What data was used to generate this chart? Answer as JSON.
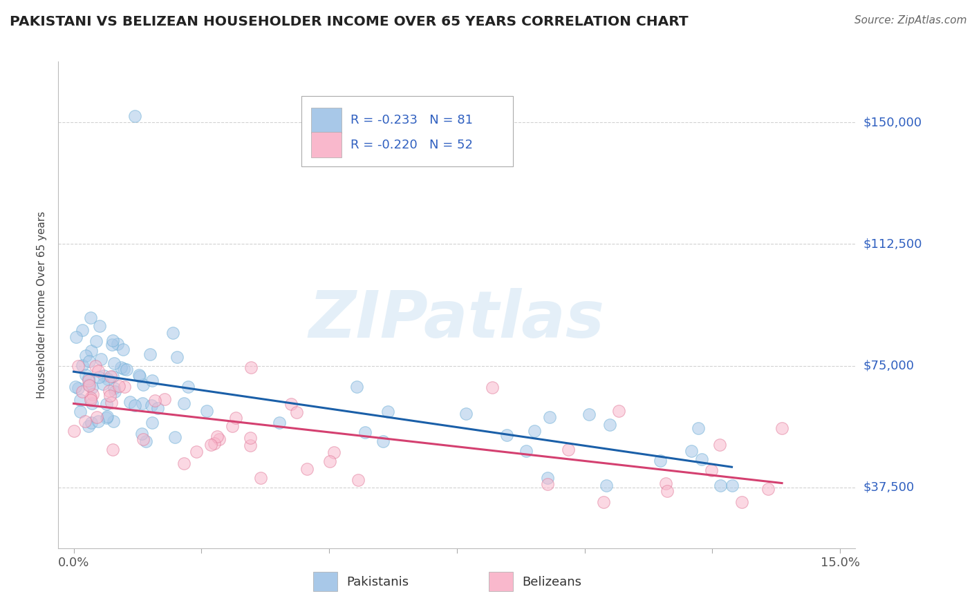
{
  "title": "PAKISTANI VS BELIZEAN HOUSEHOLDER INCOME OVER 65 YEARS CORRELATION CHART",
  "source": "Source: ZipAtlas.com",
  "ylabel": "Householder Income Over 65 years",
  "bg_color": "#ffffff",
  "grid_color": "#cccccc",
  "watermark_text": "ZIPatlas",
  "pak_fill": "#a8c8e8",
  "pak_edge": "#6baed6",
  "bel_fill": "#f9b8cc",
  "bel_edge": "#e07898",
  "pak_line_color": "#1a5fa8",
  "bel_line_color": "#d44070",
  "label_color": "#3060c0",
  "title_color": "#222222",
  "source_color": "#666666",
  "legend_R_pak": "-0.233",
  "legend_N_pak": "81",
  "legend_R_bel": "-0.220",
  "legend_N_bel": "52",
  "yticks": [
    37500,
    75000,
    112500,
    150000
  ],
  "ytick_labels": [
    "$37,500",
    "$75,000",
    "$112,500",
    "$150,000"
  ],
  "ylim_min": 18750,
  "ylim_max": 168750,
  "xlim_min": -0.003,
  "xlim_max": 0.153,
  "seed": 17
}
